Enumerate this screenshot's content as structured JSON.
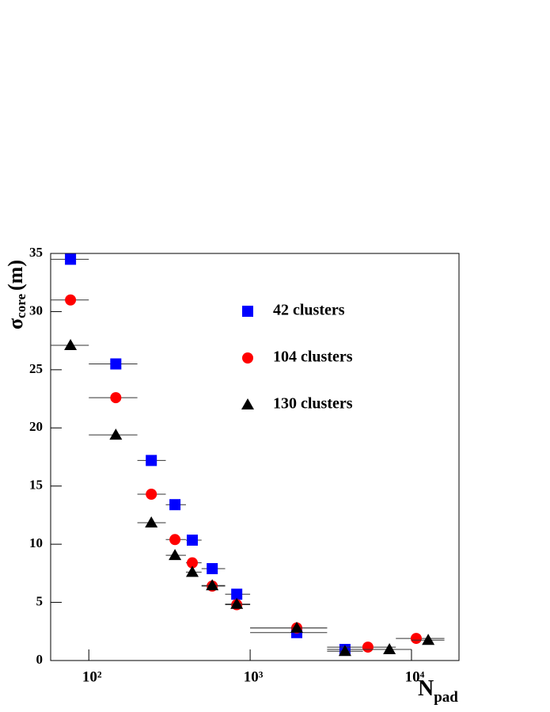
{
  "chart_data": {
    "type": "scatter",
    "ylabel": {
      "symbol": "σ",
      "subscript": "core",
      "unit": "(m)"
    },
    "xlabel": {
      "symbol": "N",
      "subscript": "pad"
    },
    "xlog": true,
    "xlim": [
      58,
      19700
    ],
    "ylim": [
      0,
      35
    ],
    "xticks": [
      {
        "value": 100,
        "label": "10²"
      },
      {
        "value": 1000,
        "label": "10³"
      },
      {
        "value": 10000,
        "label": "10⁴"
      }
    ],
    "yticks": [
      0,
      5,
      10,
      15,
      20,
      25,
      30,
      35
    ],
    "series": [
      {
        "name": "42 clusters",
        "color": "#0000ff",
        "marker": "square",
        "x": [
          77,
          147,
          244,
          342,
          438,
          582,
          826,
          1945,
          3870
        ],
        "values": [
          34.5,
          25.5,
          17.2,
          13.4,
          10.35,
          7.9,
          5.7,
          2.4,
          0.95
        ],
        "x_lo": [
          50,
          100,
          200,
          300,
          400,
          500,
          700,
          1000,
          3000
        ],
        "x_hi": [
          100,
          200,
          300,
          400,
          500,
          700,
          1000,
          3000,
          5000
        ]
      },
      {
        "name": "104 clusters",
        "color": "#ff0000",
        "marker": "circle",
        "x": [
          77,
          147,
          244,
          342,
          438,
          582,
          826,
          1945,
          5370,
          10700
        ],
        "values": [
          31.0,
          22.6,
          14.3,
          10.4,
          8.4,
          6.4,
          4.8,
          2.8,
          1.15,
          1.9
        ],
        "x_lo": [
          50,
          100,
          200,
          300,
          400,
          500,
          700,
          1000,
          3000,
          8000
        ],
        "x_hi": [
          100,
          200,
          300,
          400,
          500,
          700,
          1000,
          3000,
          8000,
          16000
        ]
      },
      {
        "name": "130 clusters",
        "color": "#000000",
        "marker": "triangle",
        "x": [
          77,
          147,
          244,
          342,
          438,
          582,
          826,
          1945,
          3870,
          7300,
          12700
        ],
        "values": [
          27.1,
          19.4,
          11.85,
          9.05,
          7.6,
          6.45,
          4.85,
          2.8,
          0.8,
          0.95,
          1.75
        ],
        "x_lo": [
          50,
          100,
          200,
          300,
          400,
          500,
          700,
          1000,
          3000,
          5000,
          10000
        ],
        "x_hi": [
          100,
          200,
          300,
          400,
          500,
          700,
          1000,
          3000,
          5000,
          10000,
          16000
        ]
      }
    ]
  }
}
